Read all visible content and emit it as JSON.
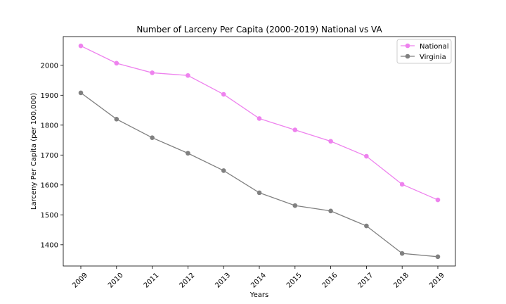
{
  "chart_data": {
    "type": "line",
    "title": "Number of Larceny Per Capita (2000-2019) National vs VA",
    "xlabel": "Years",
    "ylabel": "Larceny Per Capita (per 100,000)",
    "x": [
      "2009",
      "2010",
      "2011",
      "2012",
      "2013",
      "2014",
      "2015",
      "2016",
      "2017",
      "2018",
      "2019"
    ],
    "ylim": [
      1329,
      2096
    ],
    "yticks": [
      1400,
      1500,
      1600,
      1700,
      1800,
      1900,
      2000
    ],
    "grid": false,
    "legend_position": "top-right",
    "series": [
      {
        "name": "National",
        "color": "#ee82ee",
        "values": [
          2065,
          2007,
          1975,
          1966,
          1903,
          1822,
          1784,
          1746,
          1696,
          1602,
          1550
        ]
      },
      {
        "name": "Virginia",
        "color": "#808080",
        "values": [
          1908,
          1820,
          1758,
          1706,
          1648,
          1574,
          1531,
          1513,
          1463,
          1371,
          1360
        ]
      }
    ]
  }
}
